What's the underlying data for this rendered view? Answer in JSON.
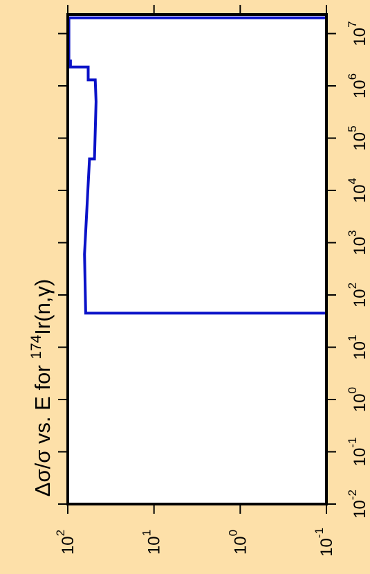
{
  "chart_data": {
    "type": "line",
    "title": "Δσ/σ vs. E for ¹⁷⁴Ir(n,γ)",
    "title_parts": {
      "prefix": "Δσ/σ vs. E for ",
      "superscript": "174",
      "suffix": "Ir(n,γ)"
    },
    "orientation": "rotated-90-clockwise",
    "x_axis": {
      "label": "",
      "scale": "log",
      "lim": [
        0.01,
        20000000
      ],
      "tick_labels": [
        {
          "base": "10",
          "exp": "-2",
          "value": 0.01
        },
        {
          "base": "10",
          "exp": "-1",
          "value": 0.1
        },
        {
          "base": "10",
          "exp": "0",
          "value": 1
        },
        {
          "base": "10",
          "exp": "1",
          "value": 10
        },
        {
          "base": "10",
          "exp": "2",
          "value": 100
        },
        {
          "base": "10",
          "exp": "3",
          "value": 1000
        },
        {
          "base": "10",
          "exp": "4",
          "value": 10000
        },
        {
          "base": "10",
          "exp": "5",
          "value": 100000
        },
        {
          "base": "10",
          "exp": "6",
          "value": 1000000
        },
        {
          "base": "10",
          "exp": "7",
          "value": 10000000
        }
      ]
    },
    "y_axis": {
      "label": "",
      "scale": "log",
      "reversed": true,
      "lim": [
        100,
        0.1
      ],
      "tick_labels": [
        {
          "base": "10",
          "exp": "2",
          "value": 100
        },
        {
          "base": "10",
          "exp": "1",
          "value": 10
        },
        {
          "base": "10",
          "exp": "0",
          "value": 1
        },
        {
          "base": "10",
          "exp": "-1",
          "value": 0.1
        }
      ]
    },
    "grid": false,
    "series": [
      {
        "color": "#0a12c8",
        "step": true,
        "points": [
          {
            "x": 0.01,
            "y": 0.1
          },
          {
            "x": 45,
            "y": 0.1
          },
          {
            "x": 45,
            "y": 62
          },
          {
            "x": 600,
            "y": 64
          },
          {
            "x": 40000,
            "y": 56
          },
          {
            "x": 40000,
            "y": 49
          },
          {
            "x": 500000,
            "y": 47
          },
          {
            "x": 1300000,
            "y": 48
          },
          {
            "x": 1300000,
            "y": 58
          },
          {
            "x": 2300000,
            "y": 58
          },
          {
            "x": 2300000,
            "y": 93
          },
          {
            "x": 3000000,
            "y": 93
          },
          {
            "x": 3000000,
            "y": 97
          },
          {
            "x": 20000000,
            "y": 97
          },
          {
            "x": 20000000,
            "y": 0.1
          }
        ]
      }
    ]
  }
}
